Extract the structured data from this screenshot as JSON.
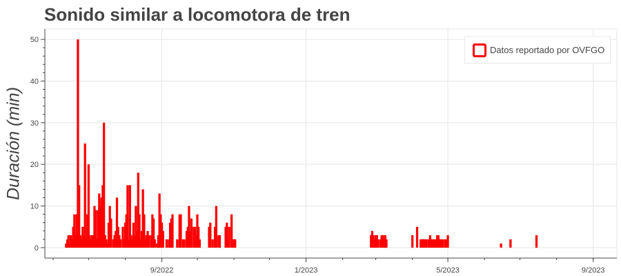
{
  "chart_data": {
    "type": "bar",
    "title": "Sonido similar a locomotora de tren",
    "xlabel": "",
    "ylabel": "Duración (min)",
    "ylim": [
      -2.5,
      52.5
    ],
    "y_ticks": [
      0,
      10,
      20,
      30,
      40,
      50
    ],
    "x_domain": [
      "2022-05-25",
      "2023-09-21"
    ],
    "x_ticks": [
      {
        "date": "2022-09-01",
        "label": "9/2022"
      },
      {
        "date": "2023-01-01",
        "label": "1/2023"
      },
      {
        "date": "2023-05-01",
        "label": "5/2023"
      },
      {
        "date": "2023-09-01",
        "label": "9/2023"
      }
    ],
    "grid": true,
    "legend": {
      "label": "Datos reportado por OVFGO",
      "position": "top-right"
    },
    "bar_color": "#ff0000",
    "series": [
      {
        "name": "Datos reportado por OVFGO",
        "points": [
          [
            "2022-06-12",
            1
          ],
          [
            "2022-06-13",
            2
          ],
          [
            "2022-06-14",
            3
          ],
          [
            "2022-06-15",
            1
          ],
          [
            "2022-06-16",
            3
          ],
          [
            "2022-06-17",
            2
          ],
          [
            "2022-06-18",
            5
          ],
          [
            "2022-06-19",
            8
          ],
          [
            "2022-06-20",
            3
          ],
          [
            "2022-06-21",
            8
          ],
          [
            "2022-06-22",
            50
          ],
          [
            "2022-06-23",
            15
          ],
          [
            "2022-06-24",
            3
          ],
          [
            "2022-06-25",
            2
          ],
          [
            "2022-06-26",
            5
          ],
          [
            "2022-06-27",
            3
          ],
          [
            "2022-06-28",
            25
          ],
          [
            "2022-06-29",
            2
          ],
          [
            "2022-06-30",
            8
          ],
          [
            "2022-07-01",
            20
          ],
          [
            "2022-07-02",
            3
          ],
          [
            "2022-07-03",
            2
          ],
          [
            "2022-07-04",
            3
          ],
          [
            "2022-07-05",
            3
          ],
          [
            "2022-07-06",
            10
          ],
          [
            "2022-07-07",
            9
          ],
          [
            "2022-07-08",
            2
          ],
          [
            "2022-07-09",
            9
          ],
          [
            "2022-07-10",
            13
          ],
          [
            "2022-07-11",
            10
          ],
          [
            "2022-07-12",
            12
          ],
          [
            "2022-07-13",
            15
          ],
          [
            "2022-07-14",
            30
          ],
          [
            "2022-07-15",
            3
          ],
          [
            "2022-07-16",
            2
          ],
          [
            "2022-07-17",
            1
          ],
          [
            "2022-07-18",
            6
          ],
          [
            "2022-07-19",
            10
          ],
          [
            "2022-07-20",
            7
          ],
          [
            "2022-07-22",
            2
          ],
          [
            "2022-07-23",
            3
          ],
          [
            "2022-07-24",
            4
          ],
          [
            "2022-07-25",
            12
          ],
          [
            "2022-07-26",
            5
          ],
          [
            "2022-07-27",
            3
          ],
          [
            "2022-07-28",
            2
          ],
          [
            "2022-07-30",
            5
          ],
          [
            "2022-07-31",
            2
          ],
          [
            "2022-08-01",
            6
          ],
          [
            "2022-08-02",
            8
          ],
          [
            "2022-08-03",
            15
          ],
          [
            "2022-08-04",
            2
          ],
          [
            "2022-08-05",
            15
          ],
          [
            "2022-08-06",
            3
          ],
          [
            "2022-08-07",
            2
          ],
          [
            "2022-08-08",
            6
          ],
          [
            "2022-08-09",
            3
          ],
          [
            "2022-08-10",
            10
          ],
          [
            "2022-08-11",
            4
          ],
          [
            "2022-08-12",
            18
          ],
          [
            "2022-08-13",
            8
          ],
          [
            "2022-08-14",
            2
          ],
          [
            "2022-08-15",
            4
          ],
          [
            "2022-08-16",
            14
          ],
          [
            "2022-08-17",
            8
          ],
          [
            "2022-08-18",
            2
          ],
          [
            "2022-08-19",
            3
          ],
          [
            "2022-08-20",
            4
          ],
          [
            "2022-08-21",
            3
          ],
          [
            "2022-08-23",
            3
          ],
          [
            "2022-08-24",
            8
          ],
          [
            "2022-08-25",
            7
          ],
          [
            "2022-08-26",
            2
          ],
          [
            "2022-08-28",
            1
          ],
          [
            "2022-08-29",
            3
          ],
          [
            "2022-08-30",
            13
          ],
          [
            "2022-08-31",
            8
          ],
          [
            "2022-09-01",
            6
          ],
          [
            "2022-09-02",
            4
          ],
          [
            "2022-09-05",
            2
          ],
          [
            "2022-09-07",
            2
          ],
          [
            "2022-09-08",
            6
          ],
          [
            "2022-09-09",
            7
          ],
          [
            "2022-09-10",
            8
          ],
          [
            "2022-09-14",
            2
          ],
          [
            "2022-09-16",
            8
          ],
          [
            "2022-09-17",
            8
          ],
          [
            "2022-09-19",
            2
          ],
          [
            "2022-09-20",
            2
          ],
          [
            "2022-09-22",
            4
          ],
          [
            "2022-09-23",
            5
          ],
          [
            "2022-09-24",
            10
          ],
          [
            "2022-09-25",
            4
          ],
          [
            "2022-09-26",
            7
          ],
          [
            "2022-09-28",
            5
          ],
          [
            "2022-09-29",
            5
          ],
          [
            "2022-09-30",
            3
          ],
          [
            "2022-10-01",
            8
          ],
          [
            "2022-10-02",
            5
          ],
          [
            "2022-10-03",
            2
          ],
          [
            "2022-10-11",
            5
          ],
          [
            "2022-10-12",
            6
          ],
          [
            "2022-10-14",
            2
          ],
          [
            "2022-10-16",
            5
          ],
          [
            "2022-10-17",
            10
          ],
          [
            "2022-10-19",
            3
          ],
          [
            "2022-10-20",
            3
          ],
          [
            "2022-10-25",
            5
          ],
          [
            "2022-10-26",
            6
          ],
          [
            "2022-10-27",
            2
          ],
          [
            "2022-10-28",
            5
          ],
          [
            "2022-10-30",
            8
          ],
          [
            "2022-10-31",
            2
          ],
          [
            "2022-11-01",
            2
          ],
          [
            "2022-11-02",
            2
          ],
          [
            "2023-02-25",
            3
          ],
          [
            "2023-02-26",
            4
          ],
          [
            "2023-02-27",
            3
          ],
          [
            "2023-02-28",
            2
          ],
          [
            "2023-03-01",
            3
          ],
          [
            "2023-03-02",
            3
          ],
          [
            "2023-03-03",
            2
          ],
          [
            "2023-03-05",
            2
          ],
          [
            "2023-03-06",
            3
          ],
          [
            "2023-03-07",
            3
          ],
          [
            "2023-03-08",
            2
          ],
          [
            "2023-03-09",
            3
          ],
          [
            "2023-03-10",
            2
          ],
          [
            "2023-04-01",
            3
          ],
          [
            "2023-04-05",
            5
          ],
          [
            "2023-04-08",
            2
          ],
          [
            "2023-04-09",
            2
          ],
          [
            "2023-04-10",
            2
          ],
          [
            "2023-04-11",
            2
          ],
          [
            "2023-04-12",
            2
          ],
          [
            "2023-04-13",
            2
          ],
          [
            "2023-04-15",
            2
          ],
          [
            "2023-04-16",
            3
          ],
          [
            "2023-04-17",
            2
          ],
          [
            "2023-04-18",
            2
          ],
          [
            "2023-04-19",
            2
          ],
          [
            "2023-04-20",
            2
          ],
          [
            "2023-04-21",
            2
          ],
          [
            "2023-04-22",
            3
          ],
          [
            "2023-04-23",
            3
          ],
          [
            "2023-04-24",
            2
          ],
          [
            "2023-04-25",
            2
          ],
          [
            "2023-04-26",
            2
          ],
          [
            "2023-04-27",
            2
          ],
          [
            "2023-04-29",
            2
          ],
          [
            "2023-04-30",
            2
          ],
          [
            "2023-05-01",
            3
          ],
          [
            "2023-06-15",
            1
          ],
          [
            "2023-06-23",
            2
          ],
          [
            "2023-07-15",
            3
          ]
        ]
      }
    ]
  }
}
